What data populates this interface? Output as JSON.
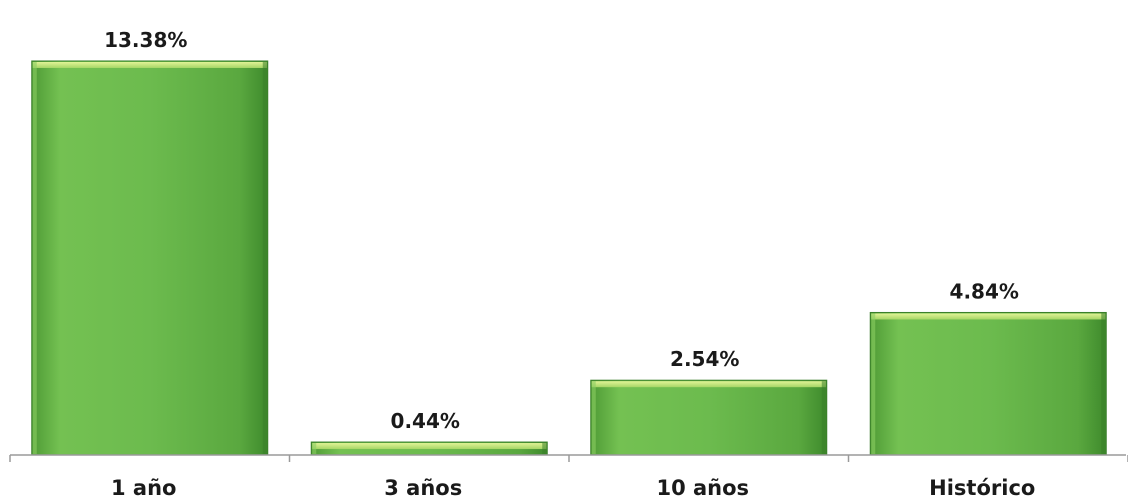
{
  "chart_data": {
    "type": "bar",
    "title": "",
    "xlabel": "",
    "ylabel": "",
    "categories": [
      "1 año",
      "3 años",
      "10 años",
      "Histórico"
    ],
    "values": [
      13.38,
      0.44,
      2.54,
      4.84
    ],
    "value_labels": [
      "13.38%",
      "0.44%",
      "2.54%",
      "4.84%"
    ],
    "ylim": [
      0,
      14.5
    ],
    "grid": false,
    "legend": "none",
    "colors": {
      "bar_fill": "#6dbb4f",
      "bar_light": "#a6dc78",
      "bar_dark": "#3e8a2c",
      "bar_top_highlight": "#d8f08a",
      "axis": "#9a9a9a",
      "text": "#1a1a1a"
    }
  }
}
